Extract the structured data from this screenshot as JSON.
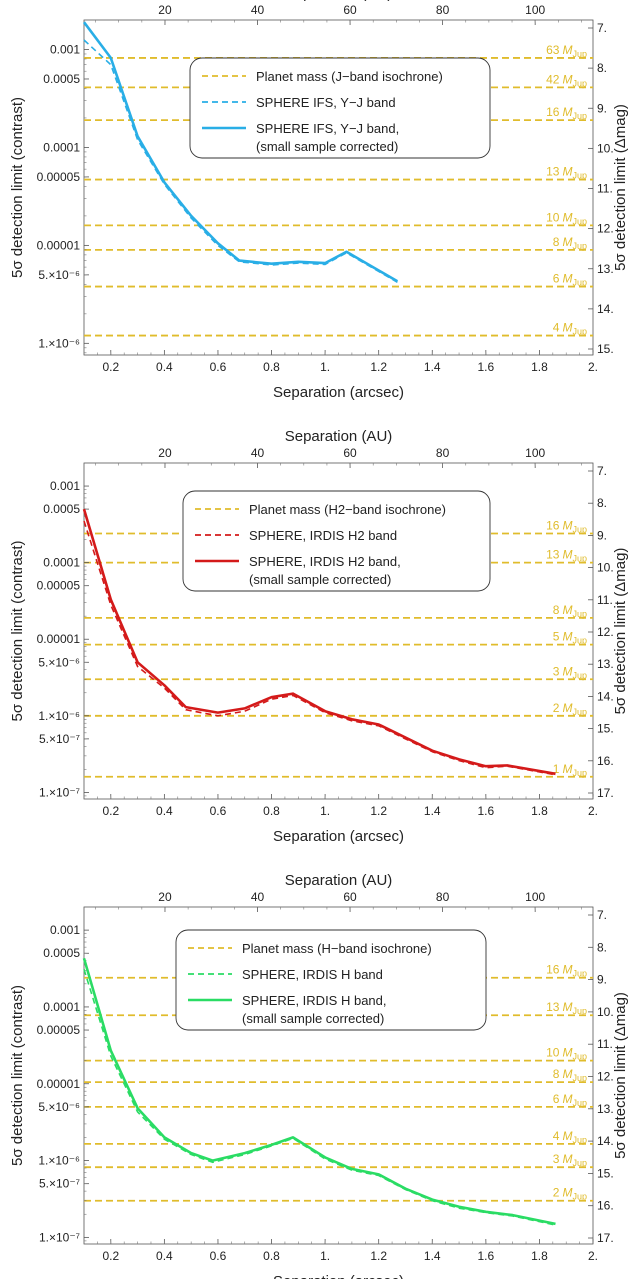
{
  "chart_data": [
    {
      "type": "line",
      "top_axis": {
        "label": "Separation (AU)",
        "ticks": [
          "20",
          "40",
          "60",
          "80",
          "100"
        ],
        "tick_values": [
          20,
          40,
          60,
          80,
          100
        ],
        "range": [
          2.5,
          112.5
        ]
      },
      "x_axis": {
        "label": "Separation (arcsec)",
        "range": [
          0.1,
          2.0
        ],
        "ticks": [
          "0.2",
          "0.4",
          "0.6",
          "0.8",
          "1.",
          "1.2",
          "1.4",
          "1.6",
          "1.8",
          "2."
        ],
        "tick_values": [
          0.2,
          0.4,
          0.6,
          0.8,
          1.0,
          1.2,
          1.4,
          1.6,
          1.8,
          2.0
        ]
      },
      "y_axis": {
        "label": "5σ detection limit (contrast)",
        "scale": "log",
        "range": [
          7.6e-07,
          0.002
        ],
        "ticks": [
          {
            "label": "1.×10⁻⁶",
            "value": 1e-06
          },
          {
            "label": "5.×10⁻⁶",
            "value": 5e-06
          },
          {
            "label": "0.00001",
            "value": 1e-05
          },
          {
            "label": "0.00005",
            "value": 5e-05
          },
          {
            "label": "0.0001",
            "value": 0.0001
          },
          {
            "label": "0.0005",
            "value": 0.0005
          },
          {
            "label": "0.001",
            "value": 0.001
          }
        ]
      },
      "right_axis": {
        "label": "5σ detection limit (Δmag)",
        "ticks": [
          "7.",
          "8.",
          "9.",
          "10.",
          "11.",
          "12.",
          "13.",
          "14.",
          "15."
        ]
      },
      "legend": {
        "position": "top-center",
        "entries": [
          {
            "label": "Planet mass (J−band isochrone)",
            "style": "dashed",
            "color": "#e0bc2c"
          },
          {
            "label": "SPHERE IFS, Y−J band",
            "style": "dashed",
            "color": "#29aee6"
          },
          {
            "label": "SPHERE IFS, Y−J band,",
            "label2": "(small sample corrected)",
            "style": "solid",
            "color": "#29aee6"
          }
        ]
      },
      "mass_lines": [
        {
          "label": "63",
          "contrast": 0.00082
        },
        {
          "label": "42",
          "contrast": 0.00041
        },
        {
          "label": "16",
          "contrast": 0.00019
        },
        {
          "label": "13",
          "contrast": 4.7e-05
        },
        {
          "label": "10",
          "contrast": 1.6e-05
        },
        {
          "label": "8",
          "contrast": 9e-06
        },
        {
          "label": "6",
          "contrast": 3.8e-06
        },
        {
          "label": "4",
          "contrast": 1.2e-06
        }
      ],
      "mass_unit": "M",
      "mass_sub": "Jup",
      "series": [
        {
          "style": "dashed",
          "color": "#29aee6",
          "x": [
            0.1,
            0.2,
            0.3,
            0.4,
            0.5,
            0.6,
            0.68,
            0.8,
            0.9,
            1.0,
            1.08,
            1.27
          ],
          "y": [
            0.00125,
            0.0007,
            0.00012,
            4.2e-05,
            1.9e-05,
            1e-05,
            6.8e-06,
            6.3e-06,
            6.6e-06,
            6.4e-06,
            8.4e-06,
            4.2e-06
          ]
        },
        {
          "style": "solid",
          "color": "#29aee6",
          "x": [
            0.1,
            0.2,
            0.3,
            0.4,
            0.5,
            0.6,
            0.68,
            0.8,
            0.9,
            1.0,
            1.08,
            1.27
          ],
          "y": [
            0.0019,
            0.00082,
            0.00013,
            4.4e-05,
            2e-05,
            1.05e-05,
            7e-06,
            6.5e-06,
            6.8e-06,
            6.6e-06,
            8.6e-06,
            4.3e-06
          ]
        }
      ]
    },
    {
      "type": "line",
      "top_axis": {
        "label": "Separation (AU)",
        "ticks": [
          "20",
          "40",
          "60",
          "80",
          "100"
        ],
        "tick_values": [
          20,
          40,
          60,
          80,
          100
        ],
        "range": [
          2.5,
          112.5
        ]
      },
      "x_axis": {
        "label": "Separation (arcsec)",
        "range": [
          0.1,
          2.0
        ],
        "ticks": [
          "0.2",
          "0.4",
          "0.6",
          "0.8",
          "1.",
          "1.2",
          "1.4",
          "1.6",
          "1.8",
          "2."
        ],
        "tick_values": [
          0.2,
          0.4,
          0.6,
          0.8,
          1.0,
          1.2,
          1.4,
          1.6,
          1.8,
          2.0
        ]
      },
      "y_axis": {
        "label": "5σ detection limit (contrast)",
        "scale": "log",
        "range": [
          8.2e-08,
          0.002
        ],
        "ticks": [
          {
            "label": "1.×10⁻⁷",
            "value": 1e-07
          },
          {
            "label": "5.×10⁻⁷",
            "value": 5e-07
          },
          {
            "label": "1.×10⁻⁶",
            "value": 1e-06
          },
          {
            "label": "5.×10⁻⁶",
            "value": 5e-06
          },
          {
            "label": "0.00001",
            "value": 1e-05
          },
          {
            "label": "0.00005",
            "value": 5e-05
          },
          {
            "label": "0.0001",
            "value": 0.0001
          },
          {
            "label": "0.0005",
            "value": 0.0005
          },
          {
            "label": "0.001",
            "value": 0.001
          }
        ]
      },
      "right_axis": {
        "label": "5σ detection limit (Δmag)",
        "ticks": [
          "7.",
          "8.",
          "9.",
          "10.",
          "11.",
          "12.",
          "13.",
          "14.",
          "15.",
          "16.",
          "17."
        ]
      },
      "legend": {
        "position": "top-center",
        "entries": [
          {
            "label": "Planet mass (H2−band isochrone)",
            "style": "dashed",
            "color": "#e0bc2c"
          },
          {
            "label": "SPHERE, IRDIS H2 band",
            "style": "dashed",
            "color": "#d41a1a"
          },
          {
            "label": "SPHERE, IRDIS H2 band,",
            "label2": "(small sample corrected)",
            "style": "solid",
            "color": "#d41a1a"
          }
        ]
      },
      "mass_lines": [
        {
          "label": "16",
          "contrast": 0.00024
        },
        {
          "label": "13",
          "contrast": 0.0001
        },
        {
          "label": "8",
          "contrast": 1.9e-05
        },
        {
          "label": "5",
          "contrast": 8.5e-06
        },
        {
          "label": "3",
          "contrast": 3e-06
        },
        {
          "label": "2",
          "contrast": 1e-06
        },
        {
          "label": "1",
          "contrast": 1.6e-07
        }
      ],
      "mass_unit": "M",
      "mass_sub": "Jup",
      "series": [
        {
          "style": "dashed",
          "color": "#d41a1a",
          "x": [
            0.1,
            0.2,
            0.3,
            0.4,
            0.48,
            0.6,
            0.7,
            0.8,
            0.88,
            1.0,
            1.1,
            1.2,
            1.3,
            1.4,
            1.5,
            1.6,
            1.68,
            1.86
          ],
          "y": [
            0.00035,
            2.8e-05,
            4.4e-06,
            2.3e-06,
            1.2e-06,
            1e-06,
            1.15e-06,
            1.65e-06,
            1.85e-06,
            1.1e-06,
            8.6e-07,
            7.4e-07,
            5e-07,
            3.4e-07,
            2.6e-07,
            2.1e-07,
            2.2e-07,
            1.7e-07
          ]
        },
        {
          "style": "solid",
          "color": "#d41a1a",
          "x": [
            0.1,
            0.2,
            0.3,
            0.4,
            0.48,
            0.6,
            0.7,
            0.8,
            0.88,
            1.0,
            1.1,
            1.2,
            1.3,
            1.4,
            1.5,
            1.6,
            1.68,
            1.86
          ],
          "y": [
            0.0005,
            3.3e-05,
            5e-06,
            2.5e-06,
            1.3e-06,
            1.1e-06,
            1.25e-06,
            1.75e-06,
            1.95e-06,
            1.15e-06,
            9e-07,
            7.7e-07,
            5.2e-07,
            3.5e-07,
            2.7e-07,
            2.2e-07,
            2.25e-07,
            1.75e-07
          ]
        }
      ]
    },
    {
      "type": "line",
      "top_axis": {
        "label": "Separation (AU)",
        "ticks": [
          "20",
          "40",
          "60",
          "80",
          "100"
        ],
        "tick_values": [
          20,
          40,
          60,
          80,
          100
        ],
        "range": [
          2.5,
          112.5
        ]
      },
      "x_axis": {
        "label": "Separation (arcsec)",
        "range": [
          0.1,
          2.0
        ],
        "ticks": [
          "0.2",
          "0.4",
          "0.6",
          "0.8",
          "1.",
          "1.2",
          "1.4",
          "1.6",
          "1.8",
          "2."
        ],
        "tick_values": [
          0.2,
          0.4,
          0.6,
          0.8,
          1.0,
          1.2,
          1.4,
          1.6,
          1.8,
          2.0
        ]
      },
      "y_axis": {
        "label": "5σ detection limit (contrast)",
        "scale": "log",
        "range": [
          8.2e-08,
          0.002
        ],
        "ticks": [
          {
            "label": "1.×10⁻⁷",
            "value": 1e-07
          },
          {
            "label": "5.×10⁻⁷",
            "value": 5e-07
          },
          {
            "label": "1.×10⁻⁶",
            "value": 1e-06
          },
          {
            "label": "5.×10⁻⁶",
            "value": 5e-06
          },
          {
            "label": "0.00001",
            "value": 1e-05
          },
          {
            "label": "0.00005",
            "value": 5e-05
          },
          {
            "label": "0.0001",
            "value": 0.0001
          },
          {
            "label": "0.0005",
            "value": 0.0005
          },
          {
            "label": "0.001",
            "value": 0.001
          }
        ]
      },
      "right_axis": {
        "label": "5σ detection limit (Δmag)",
        "ticks": [
          "7.",
          "8.",
          "9.",
          "10.",
          "11.",
          "12.",
          "13.",
          "14.",
          "15.",
          "16.",
          "17."
        ]
      },
      "legend": {
        "position": "top-center",
        "entries": [
          {
            "label": "Planet mass (H−band isochrone)",
            "style": "dashed",
            "color": "#e0bc2c"
          },
          {
            "label": "SPHERE, IRDIS H band",
            "style": "dashed",
            "color": "#2adc64"
          },
          {
            "label": "SPHERE, IRDIS H band,",
            "label2": "(small sample corrected)",
            "style": "solid",
            "color": "#2adc64"
          }
        ]
      },
      "mass_lines": [
        {
          "label": "16",
          "contrast": 0.00024
        },
        {
          "label": "13",
          "contrast": 7.8e-05
        },
        {
          "label": "10",
          "contrast": 2e-05
        },
        {
          "label": "8",
          "contrast": 1.05e-05
        },
        {
          "label": "6",
          "contrast": 5e-06
        },
        {
          "label": "4",
          "contrast": 1.65e-06
        },
        {
          "label": "3",
          "contrast": 8.2e-07
        },
        {
          "label": "2",
          "contrast": 3e-07
        }
      ],
      "mass_unit": "M",
      "mass_sub": "Jup",
      "series": [
        {
          "style": "dashed",
          "color": "#2adc64",
          "x": [
            0.1,
            0.2,
            0.3,
            0.4,
            0.5,
            0.58,
            0.7,
            0.8,
            0.88,
            1.0,
            1.1,
            1.2,
            1.3,
            1.4,
            1.5,
            1.6,
            1.7,
            1.86
          ],
          "y": [
            0.00031,
            2.3e-05,
            4.3e-06,
            1.9e-06,
            1.2e-06,
            9.5e-07,
            1.2e-06,
            1.55e-06,
            1.95e-06,
            1.05e-06,
            7.5e-07,
            6.4e-07,
            4.2e-07,
            3e-07,
            2.4e-07,
            2.1e-07,
            1.9e-07,
            1.45e-07
          ]
        },
        {
          "style": "solid",
          "color": "#2adc64",
          "x": [
            0.1,
            0.2,
            0.3,
            0.4,
            0.5,
            0.58,
            0.7,
            0.8,
            0.88,
            1.0,
            1.1,
            1.2,
            1.3,
            1.4,
            1.5,
            1.6,
            1.7,
            1.86
          ],
          "y": [
            0.00043,
            2.7e-05,
            4.8e-06,
            2e-06,
            1.25e-06,
            1e-06,
            1.25e-06,
            1.6e-06,
            2e-06,
            1.1e-06,
            7.8e-07,
            6.6e-07,
            4.3e-07,
            3.1e-07,
            2.5e-07,
            2.15e-07,
            1.95e-07,
            1.5e-07
          ]
        }
      ]
    }
  ]
}
